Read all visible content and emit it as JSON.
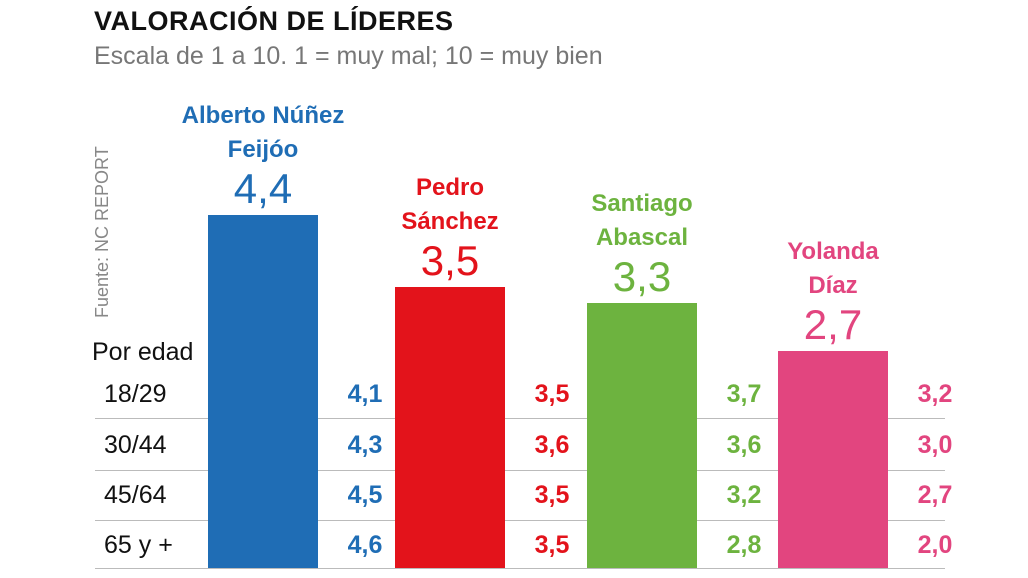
{
  "chart_data": {
    "type": "bar",
    "title": "VALORACIÓN DE LÍDERES",
    "subtitle": "Escala de 1 a 10. 1 = muy mal; 10 = muy bien",
    "source": "Fuente: NC REPORT",
    "categories": [
      "Alberto Núñez Feijóo",
      "Pedro Sánchez",
      "Santiago Abascal",
      "Yolanda Díaz"
    ],
    "values": [
      4.4,
      3.5,
      3.3,
      2.7
    ],
    "value_labels": [
      "4,4",
      "3,5",
      "3,3",
      "2,7"
    ],
    "colors": [
      "#1f6db5",
      "#e3131b",
      "#6db33f",
      "#e2457f"
    ],
    "age_table": {
      "label": "Por edad",
      "groups": [
        "18/29",
        "30/44",
        "45/64",
        "65 y +"
      ],
      "cells": [
        [
          "4,1",
          "4,3",
          "4,5",
          "4,6"
        ],
        [
          "3,5",
          "3,6",
          "3,5",
          "3,5"
        ],
        [
          "3,7",
          "3,6",
          "3,2",
          "2,8"
        ],
        [
          "3,2",
          "3,0",
          "2,7",
          "2,0"
        ]
      ]
    }
  }
}
